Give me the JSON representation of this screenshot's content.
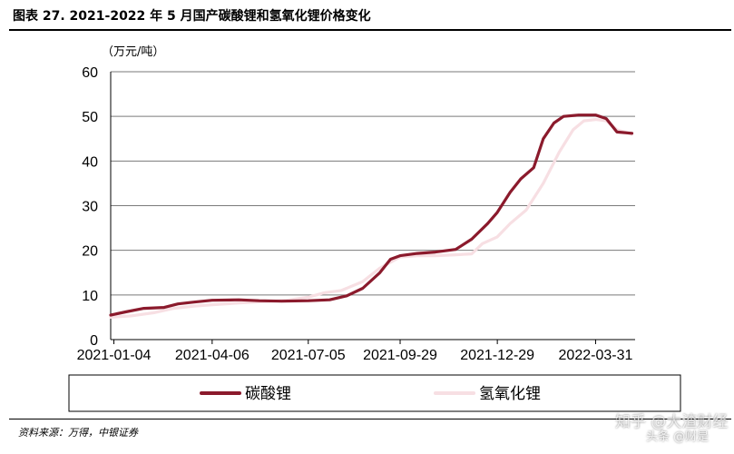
{
  "title": "图表 27. 2021-2022 年 5 月国产碳酸锂和氢氧化锂价格变化",
  "source": "资料来源：万得，中银证券",
  "watermark": "知乎 @大渣财经",
  "watermark2": "头条 @财是",
  "colors": {
    "lithium_carbonate": "#8b1a2c",
    "lithium_hydroxide": "#f7dfe3"
  },
  "chart_data": {
    "type": "line",
    "ylabel": "（万元/吨）",
    "xlabel": "",
    "ylim": [
      0,
      60
    ],
    "yticks": [
      0,
      10,
      20,
      30,
      40,
      50,
      60
    ],
    "xlim": [
      "2021-01-01",
      "2022-05-07"
    ],
    "xticks": [
      "2021-01-04",
      "2021-04-06",
      "2021-07-05",
      "2021-09-29",
      "2021-12-29",
      "2022-03-31"
    ],
    "grid": true,
    "legend_position": "bottom",
    "series": [
      {
        "name": "碳酸锂",
        "points": [
          [
            "2021-01-01",
            5.5
          ],
          [
            "2021-01-15",
            6.2
          ],
          [
            "2021-02-01",
            7.0
          ],
          [
            "2021-02-20",
            7.2
          ],
          [
            "2021-03-05",
            8.0
          ],
          [
            "2021-03-20",
            8.4
          ],
          [
            "2021-04-06",
            8.8
          ],
          [
            "2021-05-01",
            8.9
          ],
          [
            "2021-05-20",
            8.7
          ],
          [
            "2021-06-10",
            8.6
          ],
          [
            "2021-07-05",
            8.7
          ],
          [
            "2021-07-25",
            8.9
          ],
          [
            "2021-08-10",
            9.8
          ],
          [
            "2021-08-25",
            11.5
          ],
          [
            "2021-09-10",
            15.0
          ],
          [
            "2021-09-20",
            18.0
          ],
          [
            "2021-09-29",
            18.8
          ],
          [
            "2021-10-15",
            19.3
          ],
          [
            "2021-11-01",
            19.6
          ],
          [
            "2021-11-20",
            20.2
          ],
          [
            "2021-12-05",
            22.5
          ],
          [
            "2021-12-20",
            26.0
          ],
          [
            "2021-12-29",
            28.5
          ],
          [
            "2022-01-10",
            33.0
          ],
          [
            "2022-01-20",
            36.0
          ],
          [
            "2022-02-01",
            38.5
          ],
          [
            "2022-02-10",
            45.0
          ],
          [
            "2022-02-20",
            48.5
          ],
          [
            "2022-03-01",
            50.0
          ],
          [
            "2022-03-15",
            50.3
          ],
          [
            "2022-03-31",
            50.3
          ],
          [
            "2022-04-10",
            49.5
          ],
          [
            "2022-04-20",
            46.5
          ],
          [
            "2022-05-04",
            46.2
          ]
        ]
      },
      {
        "name": "氢氧化锂",
        "points": [
          [
            "2021-01-01",
            5.0
          ],
          [
            "2021-01-20",
            5.3
          ],
          [
            "2021-02-10",
            6.0
          ],
          [
            "2021-03-01",
            7.0
          ],
          [
            "2021-03-20",
            7.5
          ],
          [
            "2021-04-06",
            7.8
          ],
          [
            "2021-05-01",
            8.2
          ],
          [
            "2021-05-25",
            8.5
          ],
          [
            "2021-06-15",
            8.8
          ],
          [
            "2021-07-05",
            9.5
          ],
          [
            "2021-07-20",
            10.5
          ],
          [
            "2021-08-05",
            11.0
          ],
          [
            "2021-08-25",
            13.0
          ],
          [
            "2021-09-10",
            16.0
          ],
          [
            "2021-09-29",
            18.5
          ],
          [
            "2021-10-15",
            18.8
          ],
          [
            "2021-11-01",
            18.8
          ],
          [
            "2021-11-20",
            19.0
          ],
          [
            "2021-12-05",
            19.2
          ],
          [
            "2021-12-15",
            21.5
          ],
          [
            "2021-12-29",
            23.0
          ],
          [
            "2022-01-10",
            26.0
          ],
          [
            "2022-01-25",
            29.0
          ],
          [
            "2022-02-10",
            35.0
          ],
          [
            "2022-02-25",
            42.0
          ],
          [
            "2022-03-10",
            47.0
          ],
          [
            "2022-03-20",
            49.0
          ],
          [
            "2022-03-31",
            49.3
          ],
          [
            "2022-04-10",
            49.0
          ],
          [
            "2022-04-20",
            47.0
          ],
          [
            "2022-05-04",
            46.0
          ]
        ]
      }
    ]
  }
}
